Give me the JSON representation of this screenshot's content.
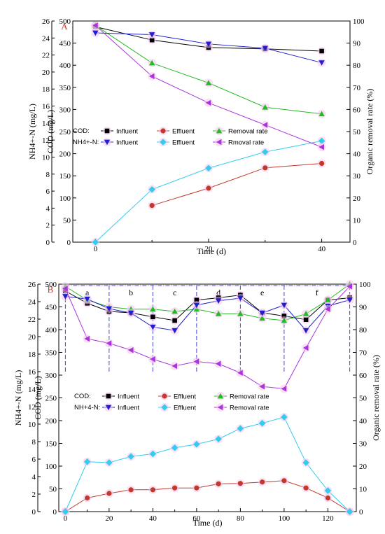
{
  "chart_data": [
    {
      "type": "line",
      "panel_label": "A",
      "xlabel": "Time (d)",
      "ylabel_left_outer": "NH4+-N (mg/L)",
      "ylabel_left_inner": "COD (mg/L)",
      "ylabel_right": "Organic removal rate (%)",
      "xlim": [
        -4,
        45
      ],
      "x_ticks": [
        0,
        20,
        40
      ],
      "ylim_cod": [
        0,
        500
      ],
      "ylim_nh4": [
        0,
        26
      ],
      "ylim_rate": [
        0,
        100
      ],
      "ticks_cod": [
        0,
        50,
        100,
        150,
        200,
        250,
        300,
        350,
        400,
        450,
        500
      ],
      "ticks_nh4": [
        0,
        2,
        4,
        6,
        8,
        10,
        12,
        14,
        16,
        18,
        20,
        22,
        24,
        26
      ],
      "ticks_rate": [
        0,
        10,
        20,
        30,
        40,
        50,
        60,
        70,
        80,
        90,
        100
      ],
      "legend": {
        "cod_prefix": "COD:",
        "nh4_prefix": "NH4+-N:",
        "entries": [
          {
            "row": "cod",
            "label": "Influent"
          },
          {
            "row": "cod",
            "label": "Effluent"
          },
          {
            "row": "cod",
            "label": "Removal rate"
          },
          {
            "row": "nh4",
            "label": "Influent"
          },
          {
            "row": "nh4",
            "label": "Effluent"
          },
          {
            "row": "nh4",
            "label": "Rmoval rate"
          }
        ]
      },
      "series": [
        {
          "group": "COD",
          "name": "Influent",
          "axis": "cod",
          "marker": "square",
          "color": "#000000",
          "x": [
            0,
            10,
            20,
            30,
            40
          ],
          "y": [
            487,
            457,
            440,
            437,
            432
          ]
        },
        {
          "group": "COD",
          "name": "Removal rate",
          "axis": "rate",
          "marker": "triangle-up",
          "color": "#22bb22",
          "x": [
            0,
            10,
            20,
            30,
            40
          ],
          "y": [
            98,
            81,
            72,
            61,
            58
          ]
        },
        {
          "group": "NH4+-N",
          "name": "Influent",
          "axis": "nh4",
          "marker": "triangle-down",
          "color": "#1f1fd0",
          "x": [
            0,
            10,
            20,
            30,
            40
          ],
          "y": [
            24.6,
            24.4,
            23.3,
            22.8,
            21.1
          ]
        },
        {
          "group": "NH4+-N",
          "name": "Effluent",
          "axis": "nh4",
          "marker": "diamond",
          "color": "#33ccee",
          "x": [
            0,
            10,
            20,
            30,
            40
          ],
          "y": [
            0,
            6.2,
            8.7,
            10.6,
            11.9
          ]
        },
        {
          "group": "NH4+-N",
          "name": "Rmoval rate",
          "axis": "rate",
          "marker": "triangle-left",
          "color": "#aa33dd",
          "x": [
            0,
            10,
            20,
            30,
            40
          ],
          "y": [
            98,
            75,
            63,
            53,
            43
          ]
        },
        {
          "group": "COD",
          "name": "Effluent",
          "axis": "cod",
          "marker": "circle",
          "color": "#c0392b",
          "x": [
            10,
            20,
            30,
            40
          ],
          "y": [
            83,
            122,
            168,
            178
          ]
        }
      ]
    },
    {
      "type": "line",
      "panel_label": "B",
      "xlabel": "Time (d)",
      "ylabel_left_outer": "NH4+-N (mg/L)",
      "ylabel_left_inner": "COD (mg/L)",
      "ylabel_right": "Organic removal rate (%)",
      "xlim": [
        -3,
        133
      ],
      "x_ticks": [
        0,
        20,
        40,
        60,
        80,
        100,
        120
      ],
      "ylim_cod": [
        0,
        500
      ],
      "ylim_nh4": [
        0,
        26
      ],
      "ylim_rate": [
        0,
        100
      ],
      "ticks_cod": [
        0,
        50,
        100,
        150,
        200,
        250,
        300,
        350,
        400,
        450,
        500
      ],
      "ticks_nh4": [
        0,
        2,
        4,
        6,
        8,
        10,
        12,
        14,
        16,
        18,
        20,
        22,
        24,
        26
      ],
      "ticks_rate": [
        0,
        10,
        20,
        30,
        40,
        50,
        60,
        70,
        80,
        90,
        100
      ],
      "stages": {
        "boundaries": [
          0,
          20,
          40,
          60,
          80,
          100,
          130
        ],
        "labels": [
          "a",
          "b",
          "c",
          "d",
          "e",
          "f"
        ]
      },
      "legend": {
        "cod_prefix": "COD:",
        "nh4_prefix": "NH+4-N:",
        "entries": [
          {
            "row": "cod",
            "label": "Influent"
          },
          {
            "row": "cod",
            "label": "Effluent"
          },
          {
            "row": "cod",
            "label": "Removal rate"
          },
          {
            "row": "nh4",
            "label": "Influent"
          },
          {
            "row": "nh4",
            "label": "Effluent"
          },
          {
            "row": "nh4",
            "label": "Removal rate"
          }
        ]
      },
      "series": [
        {
          "group": "COD",
          "name": "Influent",
          "axis": "cod",
          "marker": "square",
          "color": "#000000",
          "x": [
            0,
            10,
            20,
            30,
            40,
            50,
            60,
            70,
            80,
            90,
            100,
            110,
            120,
            130
          ],
          "y": [
            485,
            458,
            440,
            437,
            428,
            420,
            465,
            470,
            476,
            437,
            430,
            422,
            465,
            470
          ]
        },
        {
          "group": "COD",
          "name": "Effluent",
          "axis": "cod",
          "marker": "circle",
          "color": "#c0392b",
          "x": [
            0,
            10,
            20,
            30,
            40,
            50,
            60,
            70,
            80,
            90,
            100,
            110,
            120,
            130
          ],
          "y": [
            0,
            30,
            40,
            48,
            48,
            52,
            52,
            61,
            62,
            65,
            68,
            52,
            30,
            0
          ]
        },
        {
          "group": "COD",
          "name": "Removal rate",
          "axis": "rate",
          "marker": "triangle-up",
          "color": "#22bb22",
          "x": [
            0,
            10,
            20,
            30,
            40,
            50,
            60,
            70,
            80,
            90,
            100,
            110,
            120,
            130
          ],
          "y": [
            99,
            93,
            90,
            89,
            89,
            88,
            89,
            87,
            87,
            85,
            84,
            87,
            93,
            100
          ]
        },
        {
          "group": "NH4+-N",
          "name": "Influent",
          "axis": "nh4",
          "marker": "triangle-down",
          "color": "#1f1fd0",
          "x": [
            0,
            10,
            20,
            30,
            40,
            50,
            60,
            70,
            80,
            90,
            100,
            110,
            120,
            130
          ],
          "y": [
            24.6,
            24.3,
            23.2,
            22.7,
            21.1,
            20.7,
            23.6,
            24.1,
            24.4,
            22.7,
            23.6,
            20.7,
            23.5,
            24.2
          ]
        },
        {
          "group": "NH4+-N",
          "name": "Effluent",
          "axis": "nh4",
          "marker": "diamond",
          "color": "#33ccee",
          "x": [
            0,
            10,
            20,
            30,
            40,
            50,
            60,
            70,
            80,
            90,
            100,
            110,
            120,
            130
          ],
          "y": [
            0,
            5.7,
            5.6,
            6.3,
            6.6,
            7.3,
            7.7,
            8.3,
            9.5,
            10.1,
            10.8,
            5.6,
            2.4,
            0
          ]
        },
        {
          "group": "NH4+-N",
          "name": "Removal rate",
          "axis": "rate",
          "marker": "triangle-left",
          "color": "#aa33dd",
          "x": [
            0,
            10,
            20,
            30,
            40,
            50,
            60,
            70,
            80,
            90,
            100,
            110,
            120,
            130
          ],
          "y": [
            98,
            76,
            74,
            71,
            67,
            64,
            66,
            65,
            61,
            55,
            54,
            72,
            89,
            99
          ]
        }
      ]
    }
  ]
}
